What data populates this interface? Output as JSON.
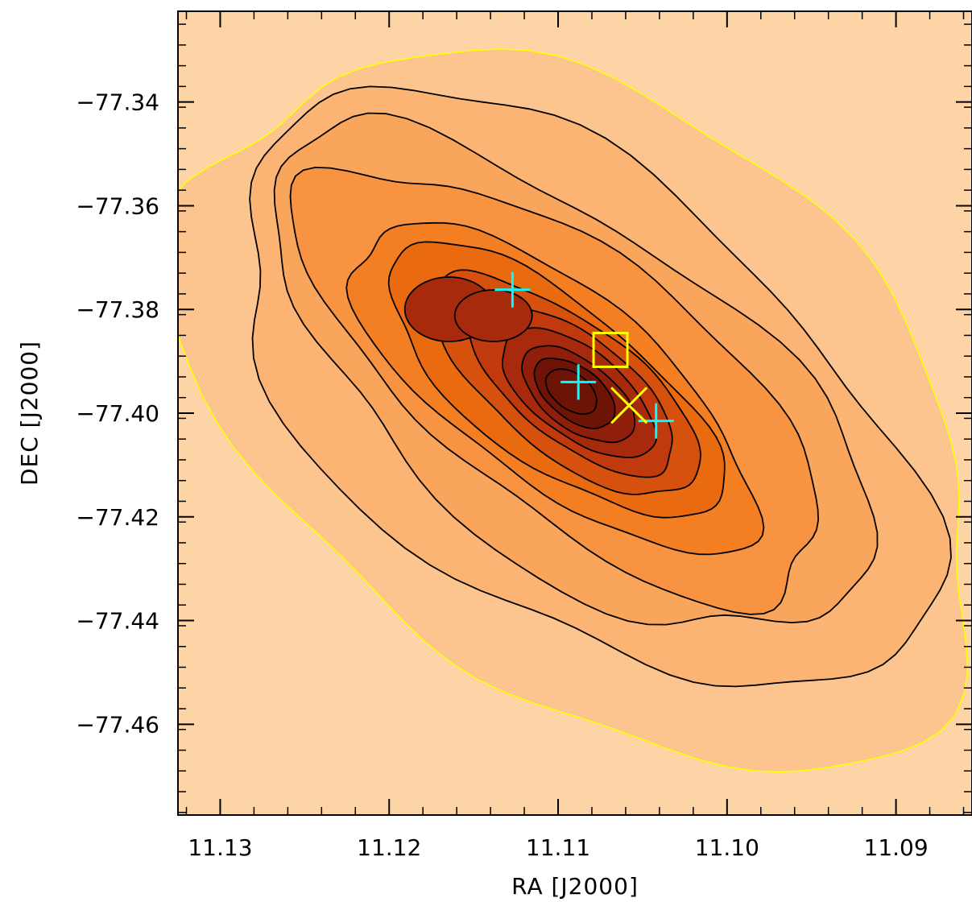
{
  "chart_data": {
    "type": "contour",
    "xlabel": "RA [J2000]",
    "ylabel": "DEC [J2000]",
    "x_axis_reversed": true,
    "xlim": [
      11.1325,
      11.0855
    ],
    "ylim": [
      -77.4775,
      -77.3225
    ],
    "x_ticks": [
      11.13,
      11.12,
      11.11,
      11.1,
      11.09
    ],
    "x_tick_labels": [
      "11.13",
      "11.12",
      "11.11",
      "11.10",
      "11.09"
    ],
    "y_ticks": [
      -77.34,
      -77.36,
      -77.38,
      -77.4,
      -77.42,
      -77.44,
      -77.46
    ],
    "y_tick_labels": [
      "−77.34",
      "−77.36",
      "−77.38",
      "−77.40",
      "−77.42",
      "−77.44",
      "−77.46"
    ],
    "colormap": [
      "#fdd4a6",
      "#fcc48e",
      "#fbb474",
      "#f9a55c",
      "#f79341",
      "#f47f23",
      "#ea6a0f",
      "#d6510e",
      "#c13a0d",
      "#a82a0c",
      "#8f1e0a",
      "#6e1406"
    ],
    "contour_line_color": "#000000",
    "lowest_contour_color": "#ffff00",
    "map_peak": {
      "ra": 11.1093,
      "dec": -77.3955
    },
    "markers": [
      {
        "symbol": "plus",
        "color": "#00ffff",
        "ra": 11.1127,
        "dec": -77.3762
      },
      {
        "symbol": "plus",
        "color": "#00ffff",
        "ra": 11.1088,
        "dec": -77.394
      },
      {
        "symbol": "plus",
        "color": "#00ffff",
        "ra": 11.1042,
        "dec": -77.4015
      },
      {
        "symbol": "square",
        "color": "#ffff00",
        "ra": 11.1069,
        "dec": -77.3878
      },
      {
        "symbol": "cross",
        "color": "#ffff00",
        "ra": 11.1058,
        "dec": -77.3985
      }
    ]
  }
}
